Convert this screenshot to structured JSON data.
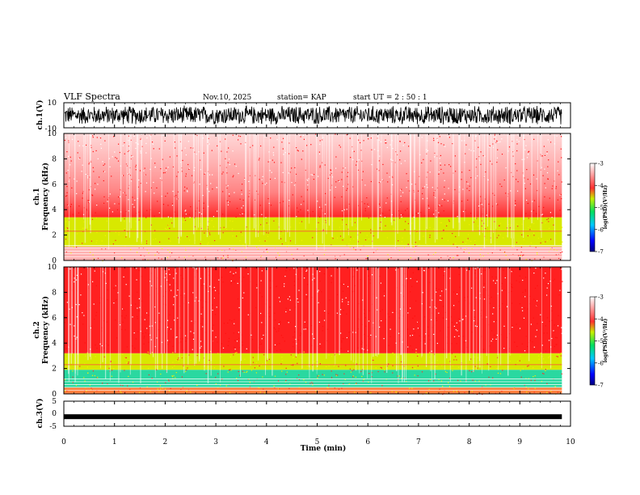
{
  "header": {
    "title": "VLF Spectra",
    "date": "Nov.10, 2025",
    "station": "station= KAP",
    "start": "start  UT =   2 : 50 : 1"
  },
  "chart_data": [
    {
      "type": "line",
      "id": "ch1-waveform",
      "ylabel": "ch.1(V)",
      "ylim": [
        -10,
        10
      ],
      "yticks": [
        "10",
        "-10"
      ],
      "xlim": [
        0,
        10
      ],
      "data_extent_min": 9.83,
      "note": "dense noise waveform filling roughly -8 to +8 V"
    },
    {
      "type": "heatmap",
      "id": "ch1-spectrogram",
      "ylabel": "ch.1\nFrequency (kHz)",
      "ylim": [
        0,
        10
      ],
      "yticks": [
        "0",
        "2",
        "4",
        "6",
        "8",
        "10"
      ],
      "xlim": [
        0,
        10
      ],
      "bands": [
        {
          "from": 0,
          "to": 1.1,
          "level": "low"
        },
        {
          "from": 1.1,
          "to": 3.4,
          "level": "yellow-green"
        },
        {
          "from": 3.4,
          "to": 10,
          "level": "red-fading"
        }
      ],
      "colorbar": {
        "label": "log(PSD)(V²/Hz)",
        "ticks": [
          "-3",
          "-4",
          "-5",
          "-6",
          "-7"
        ],
        "range": [
          -7,
          -3
        ]
      }
    },
    {
      "type": "heatmap",
      "id": "ch2-spectrogram",
      "ylabel": "ch.2\nFrequency (kHz)",
      "ylim": [
        0,
        10
      ],
      "yticks": [
        "0",
        "2",
        "4",
        "6",
        "8",
        "10"
      ],
      "xlim": [
        0,
        10
      ],
      "bands": [
        {
          "from": 0,
          "to": 0.5,
          "level": "mixed"
        },
        {
          "from": 0.5,
          "to": 1.9,
          "level": "green-cyan"
        },
        {
          "from": 1.9,
          "to": 3.2,
          "level": "yellow"
        },
        {
          "from": 3.2,
          "to": 10,
          "level": "red"
        }
      ],
      "colorbar": {
        "label": "log(PSD)(V²/Hz)",
        "ticks": [
          "-3",
          "-4",
          "-5",
          "-6",
          "-7"
        ],
        "range": [
          -7,
          -3
        ]
      }
    },
    {
      "type": "line",
      "id": "ch3-waveform",
      "ylabel": "ch.3(V)",
      "ylim": [
        -5,
        5
      ],
      "yticks": [
        "5",
        "0",
        "-5"
      ],
      "xlim": [
        0,
        10
      ],
      "level": -1.2,
      "note": "thick flat trace near -1 V"
    }
  ],
  "xaxis": {
    "label": "Time  (min)",
    "ticks": [
      "0",
      "1",
      "2",
      "3",
      "4",
      "5",
      "6",
      "7",
      "8",
      "9",
      "10"
    ]
  },
  "colors": {
    "red": "#ff1a1a",
    "yellow": "#e6f000",
    "green": "#22e07a",
    "cyan": "#2ad4d4",
    "blue": "#2030ff"
  }
}
